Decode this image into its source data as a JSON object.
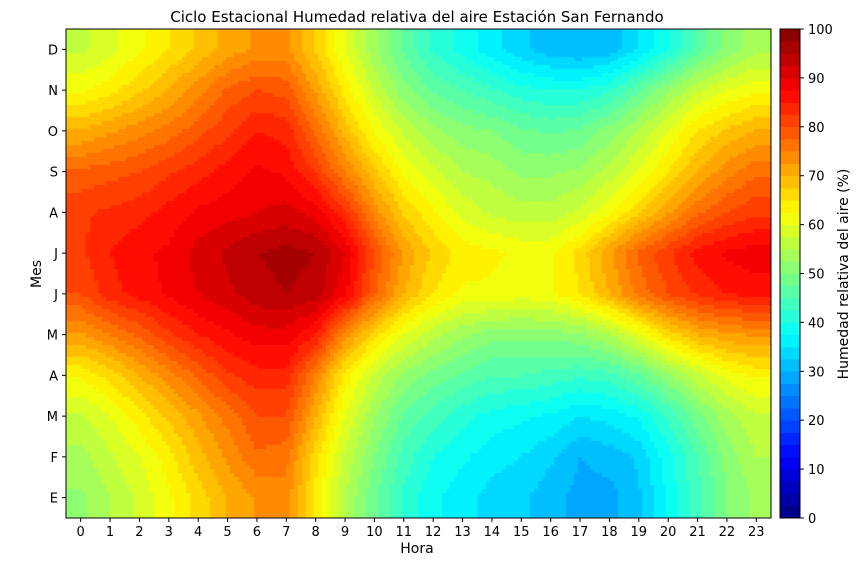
{
  "chart_data": {
    "type": "heatmap",
    "title": "Ciclo Estacional Humedad relativa del aire Estación San Fernando",
    "xlabel": "Hora",
    "ylabel": "Mes",
    "x": [
      0,
      1,
      2,
      3,
      4,
      5,
      6,
      7,
      8,
      9,
      10,
      11,
      12,
      13,
      14,
      15,
      16,
      17,
      18,
      19,
      20,
      21,
      22,
      23
    ],
    "y": [
      "E",
      "F",
      "M",
      "A",
      "M",
      "J",
      "J",
      "A",
      "S",
      "O",
      "N",
      "D"
    ],
    "z": [
      [
        52,
        55,
        58,
        62,
        66,
        70,
        73,
        74,
        64,
        55,
        48,
        42,
        38,
        36,
        34,
        33,
        31,
        29,
        29,
        32,
        38,
        44,
        50,
        53
      ],
      [
        54,
        57,
        60,
        64,
        69,
        73,
        77,
        76,
        66,
        57,
        50,
        44,
        40,
        38,
        36,
        35,
        33,
        30,
        31,
        33,
        39,
        45,
        51,
        55
      ],
      [
        57,
        60,
        64,
        68,
        72,
        76,
        80,
        80,
        70,
        60,
        53,
        47,
        44,
        41,
        39,
        38,
        37,
        35,
        36,
        38,
        43,
        49,
        54,
        57
      ],
      [
        63,
        66,
        70,
        74,
        78,
        82,
        84,
        84,
        75,
        64,
        57,
        52,
        49,
        47,
        45,
        45,
        44,
        43,
        44,
        47,
        52,
        57,
        61,
        63
      ],
      [
        72,
        75,
        78,
        82,
        85,
        87,
        89,
        89,
        85,
        74,
        66,
        60,
        56,
        53,
        51,
        51,
        51,
        52,
        55,
        60,
        66,
        70,
        72,
        73
      ],
      [
        80,
        84,
        86,
        88,
        90,
        92,
        94,
        95,
        94,
        88,
        78,
        70,
        65,
        62,
        62,
        61,
        62,
        65,
        70,
        76,
        80,
        83,
        85,
        86
      ],
      [
        82,
        85,
        87,
        88,
        91,
        93,
        95,
        96,
        95,
        90,
        80,
        72,
        67,
        64,
        63,
        62,
        62,
        66,
        72,
        78,
        82,
        86,
        88,
        89
      ],
      [
        82,
        83,
        84,
        86,
        88,
        89,
        90,
        91,
        89,
        83,
        74,
        67,
        63,
        59,
        57,
        56,
        56,
        58,
        62,
        67,
        72,
        77,
        80,
        82
      ],
      [
        78,
        79,
        80,
        82,
        84,
        86,
        88,
        87,
        82,
        75,
        68,
        62,
        58,
        55,
        54,
        52,
        52,
        53,
        56,
        60,
        65,
        70,
        74,
        77
      ],
      [
        70,
        72,
        74,
        76,
        79,
        82,
        85,
        84,
        77,
        69,
        62,
        57,
        53,
        51,
        50,
        48,
        47,
        48,
        51,
        55,
        60,
        65,
        68,
        70
      ],
      [
        62,
        64,
        67,
        70,
        74,
        78,
        80,
        79,
        72,
        64,
        57,
        51,
        47,
        45,
        43,
        41,
        40,
        40,
        42,
        47,
        52,
        57,
        60,
        62
      ],
      [
        57,
        59,
        62,
        65,
        68,
        71,
        73,
        73,
        67,
        60,
        53,
        47,
        42,
        39,
        36,
        33,
        31,
        30,
        31,
        35,
        40,
        46,
        51,
        54
      ]
    ],
    "zlim": [
      0,
      100
    ],
    "colormap": "jet",
    "colorbar_label": "Humedad relativa del aire (%)",
    "colorbar_ticks": [
      0,
      10,
      20,
      30,
      40,
      50,
      60,
      70,
      80,
      90,
      100
    ]
  }
}
